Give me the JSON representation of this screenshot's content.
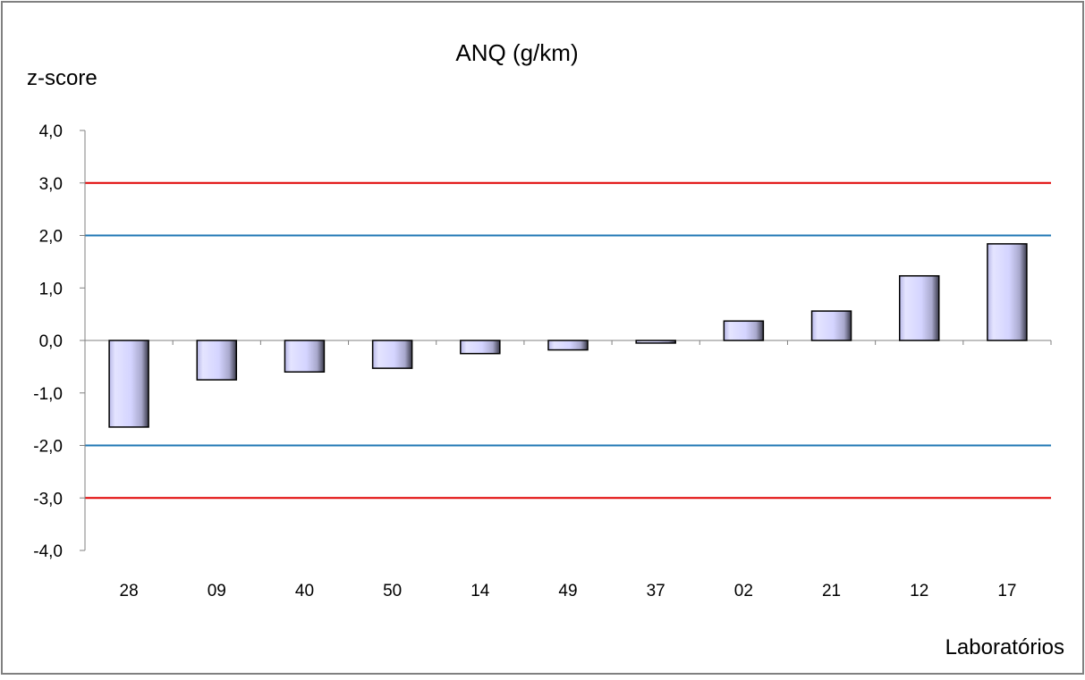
{
  "chart_data": {
    "type": "bar",
    "title": "ANQ (g/km)",
    "ylabel": "z-score",
    "xlabel": "Laboratórios",
    "categories": [
      "28",
      "09",
      "40",
      "50",
      "14",
      "49",
      "37",
      "02",
      "21",
      "12",
      "17"
    ],
    "values": [
      -1.65,
      -0.75,
      -0.6,
      -0.53,
      -0.25,
      -0.18,
      -0.05,
      0.37,
      0.56,
      1.23,
      1.84
    ],
    "ylim": [
      -4.0,
      4.0
    ],
    "yticks": [
      "4,0",
      "3,0",
      "2,0",
      "1,0",
      "0,0",
      "-1,0",
      "-2,0",
      "-3,0",
      "-4,0"
    ],
    "ytick_values": [
      4,
      3,
      2,
      1,
      0,
      -1,
      -2,
      -3,
      -4
    ],
    "reference_lines": [
      {
        "y": 3,
        "color": "#e00000"
      },
      {
        "y": -3,
        "color": "#e00000"
      },
      {
        "y": 2,
        "color": "#1f77b4"
      },
      {
        "y": -2,
        "color": "#1f77b4"
      }
    ],
    "bar_color": "#d4d4ff",
    "bar_shadow_color": "#6a6a8a",
    "grid": false,
    "legend": "none"
  }
}
